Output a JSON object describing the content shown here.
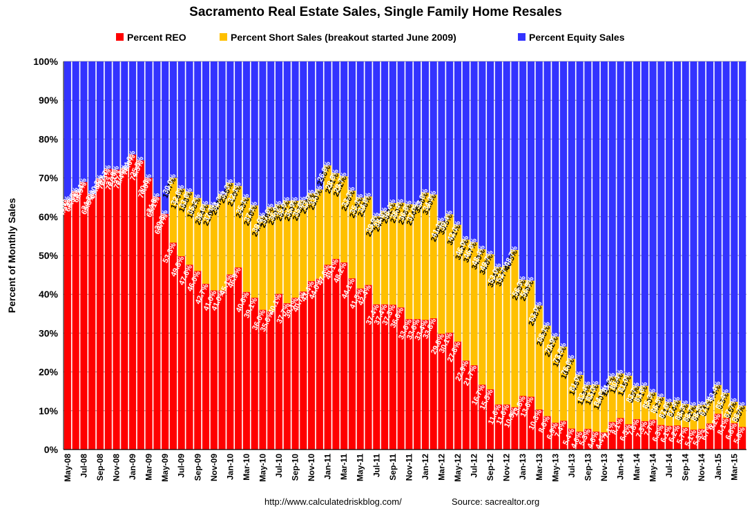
{
  "chart_data": {
    "type": "bar",
    "stacked": true,
    "title": "Sacramento Real Estate Sales, Single Family Home Resales",
    "ylabel": "Percent of Monthly Sales",
    "ylim": [
      0,
      100
    ],
    "yticks": [
      "0%",
      "10%",
      "20%",
      "30%",
      "40%",
      "50%",
      "60%",
      "70%",
      "80%",
      "90%",
      "100%"
    ],
    "grid": true,
    "legend_position": "top",
    "categories": [
      "May-08",
      "Jun-08",
      "Jul-08",
      "Aug-08",
      "Sep-08",
      "Oct-08",
      "Nov-08",
      "Dec-08",
      "Jan-09",
      "Feb-09",
      "Mar-09",
      "Apr-09",
      "May-09",
      "Jun-09",
      "Jul-09",
      "Aug-09",
      "Sep-09",
      "Oct-09",
      "Nov-09",
      "Dec-09",
      "Jan-10",
      "Feb-10",
      "Mar-10",
      "Apr-10",
      "May-10",
      "Jun-10",
      "Jul-10",
      "Aug-10",
      "Sep-10",
      "Oct-10",
      "Nov-10",
      "Dec-10",
      "Jan-11",
      "Feb-11",
      "Mar-11",
      "Apr-11",
      "May-11",
      "Jun-11",
      "Jul-11",
      "Aug-11",
      "Sep-11",
      "Oct-11",
      "Nov-11",
      "Dec-11",
      "Jan-12",
      "Feb-12",
      "Mar-12",
      "Apr-12",
      "May-12",
      "Jun-12",
      "Jul-12",
      "Aug-12",
      "Sep-12",
      "Oct-12",
      "Nov-12",
      "Dec-12",
      "Jan-13",
      "Feb-13",
      "Mar-13",
      "Apr-13",
      "May-13",
      "Jun-13",
      "Jul-13",
      "Aug-13",
      "Sep-13",
      "Oct-13",
      "Nov-13",
      "Dec-13",
      "Jan-14",
      "Feb-14",
      "Mar-14",
      "Apr-14",
      "May-14",
      "Jun-14",
      "Jul-14",
      "Aug-14",
      "Sep-14",
      "Oct-14",
      "Nov-14",
      "Dec-14",
      "Jan-15",
      "Feb-15",
      "Mar-15",
      "Apr-15"
    ],
    "xtick_labels": [
      "May-08",
      "Jul-08",
      "Sep-08",
      "Nov-08",
      "Jan-09",
      "Mar-09",
      "May-09",
      "Jul-09",
      "Sep-09",
      "Nov-09",
      "Jan-10",
      "Mar-10",
      "May-10",
      "Jul-10",
      "Sep-10",
      "Nov-10",
      "Jan-11",
      "Mar-11",
      "May-11",
      "Jul-11",
      "Sep-11",
      "Nov-11",
      "Jan-12",
      "Mar-12",
      "May-12",
      "Jul-12",
      "Sep-12",
      "Nov-12",
      "Jan-13",
      "Mar-13",
      "May-13",
      "Jul-13",
      "Sep-13",
      "Nov-13",
      "Jan-14",
      "Mar-14",
      "May-14",
      "Jul-14",
      "Sep-14",
      "Nov-14",
      "Jan-15",
      "Mar-15"
    ],
    "series": [
      {
        "name": "Percent REO",
        "color": "#ff0000",
        "values": [
          64.3,
          66.5,
          68.9,
          65.8,
          69.8,
          72.3,
          72.1,
          72.4,
          76.0,
          74.5,
          70.0,
          65.1,
          60.7,
          53.3,
          49.8,
          47.6,
          46.0,
          42.7,
          41.0,
          41.0,
          45.1,
          46.9,
          40.6,
          39.1,
          36.0,
          35.6,
          40.1,
          37.7,
          39.1,
          40.7,
          43.4,
          44.0,
          47.6,
          49.1,
          48.2,
          44.1,
          41.5,
          42.4,
          37.4,
          37.4,
          37.3,
          36.6,
          33.6,
          33.6,
          33.4,
          33.8,
          29.8,
          30.1,
          27.8,
          22.9,
          21.7,
          16.7,
          15.5,
          11.6,
          11.6,
          10.9,
          13.8,
          13.6,
          10.3,
          8.6,
          6.9,
          7.4,
          5.4,
          4.6,
          5.3,
          4.6,
          4.4,
          7.1,
          8.1,
          6.5,
          7.8,
          7.3,
          7.7,
          6.3,
          6.1,
          6.2,
          5.7,
          5.1,
          5.3,
          6.7,
          9.2,
          8.1,
          6.8,
          5.8
        ]
      },
      {
        "name": "Percent Short Sales (breakout started June 2009)",
        "color": "#ffc000",
        "values": [
          null,
          null,
          null,
          null,
          null,
          null,
          null,
          null,
          null,
          null,
          null,
          null,
          null,
          16.7,
          17.4,
          18.8,
          18.8,
          20.4,
          21.9,
          24.7,
          23.6,
          21.0,
          24.3,
          23.8,
          24.1,
          26.8,
          23.0,
          26.4,
          25.0,
          23.5,
          22.6,
          23.0,
          25.6,
          22.1,
          22.2,
          22.6,
          23.4,
          22.8,
          22.7,
          24.0,
          26.2,
          27.0,
          29.6,
          29.4,
          32.8,
          31.9,
          29.0,
          30.5,
          30.1,
          31.2,
          31.7,
          34.9,
          34.8,
          35.4,
          35.7,
          40.5,
          29.9,
          29.9,
          26.8,
          23.3,
          22.2,
          19.1,
          18.0,
          14.6,
          11.3,
          12.1,
          11.0,
          11.7,
          11.5,
          12.5,
          8.5,
          9.1,
          7.0,
          7.2,
          6.1,
          6.4,
          6.0,
          6.2,
          6.2,
          6.1,
          7.4,
          6.5,
          5.5,
          5.5
        ]
      },
      {
        "name": "Percent Equity Sales",
        "color": "#3333ff",
        "values": [
          35.7,
          33.5,
          31.1,
          34.2,
          30.2,
          27.7,
          27.9,
          27.6,
          24.0,
          25.5,
          30.0,
          34.9,
          39.3,
          30.0,
          32.8,
          33.6,
          35.2,
          36.8,
          37.1,
          34.3,
          31.3,
          32.1,
          35.1,
          37.1,
          39.9,
          37.6,
          36.9,
          35.9,
          35.9,
          35.8,
          33.9,
          33.0,
          26.8,
          28.8,
          29.7,
          33.3,
          35.1,
          34.8,
          39.9,
          38.6,
          36.4,
          36.4,
          36.8,
          37.0,
          33.8,
          34.3,
          41.1,
          39.4,
          42.1,
          46.0,
          46.6,
          48.4,
          49.7,
          53.0,
          52.7,
          48.7,
          56.3,
          56.5,
          63.0,
          68.1,
          70.9,
          73.5,
          76.6,
          81.0,
          83.4,
          83.3,
          84.6,
          81.2,
          80.4,
          81.0,
          83.7,
          83.6,
          85.3,
          86.5,
          87.8,
          87.4,
          88.3,
          88.7,
          88.5,
          87.2,
          83.4,
          85.4,
          87.7,
          88.7
        ]
      }
    ],
    "series_labels": [
      [
        "64.3%",
        "66.5%",
        "68.9%",
        "65.8%",
        "69.8%",
        "72.3%",
        "72.1%",
        "72.4%",
        "76.0%",
        "74.5%",
        "70.0%",
        "65.1%",
        "60.7%",
        "53.3%",
        "49.8%",
        "47.6%",
        "46.0%",
        "42.7%",
        "41.0%",
        "41.0%",
        "45.1%",
        "46.9%",
        "40.6%",
        "39.1%",
        "36.0%",
        "35.6%",
        "40.1%",
        "37.7%",
        "39.1%",
        "40.7%",
        "43.4%",
        "44.0%",
        "47.6%",
        "49.1%",
        "48.2%",
        "44.1%",
        "41.5%",
        "42.4%",
        "37.4%",
        "37.4%",
        "37.3%",
        "36.6%",
        "33.6%",
        "33.6%",
        "33.4%",
        "33.8%",
        "29.8%",
        "30.1%",
        "27.8%",
        "22.9%",
        "21.7%",
        "16.7%",
        "15.5%",
        "11.6%",
        "11.6%",
        "10.9%",
        "13.8%",
        "13.6%",
        "10.3%",
        "8.6%",
        "6.9%",
        "7.4%",
        "5.4%",
        "4.6%",
        "5.3%",
        "4.6%",
        "4.4%",
        "7.1%",
        "8.1%",
        "6.5%",
        "7.8%",
        "7.3%",
        "7.7%",
        "6.3%",
        "6.1%",
        "6.2%",
        "5.7%",
        "5.1%",
        "5.3%",
        "6.7%",
        "9.2%",
        "8.1%",
        "6.8%",
        "5.8%"
      ],
      [
        "",
        "",
        "",
        "",
        "",
        "",
        "",
        "",
        "",
        "",
        "",
        "",
        "",
        "16.7%",
        "17.4%",
        "18.8%",
        "18.8%",
        "20.4%",
        "21.9%",
        "24.7%",
        "23.6%",
        "21.0%",
        "24.3%",
        "23.8%",
        "24.1%",
        "26.8%",
        "23.0%",
        "26.4%",
        "25.0%",
        "23.5%",
        "22.6%",
        "23.0%",
        "25.6%",
        "22.1%",
        "22.2%",
        "22.6%",
        "23.4%",
        "22.8%",
        "22.7%",
        "24.0%",
        "26.2%",
        "27.0%",
        "29.6%",
        "29.4%",
        "32.8%",
        "31.9%",
        "29.0%",
        "30.5%",
        "30.1%",
        "31.2%",
        "31.7%",
        "34.9%",
        "34.8%",
        "35.4%",
        "35.7%",
        "40.5%",
        "29.9%",
        "29.9%",
        "26.8%",
        "23.3%",
        "22.2%",
        "19.1%",
        "18.0%",
        "14.6%",
        "11.3%",
        "12.1%",
        "11.0%",
        "11.7%",
        "11.5%",
        "12.5%",
        "8.5%",
        "9.1%",
        "7.0%",
        "7.2%",
        "6.1%",
        "6.4%",
        "6.0%",
        "6.2%",
        "6.2%",
        "6.1%",
        "7.4%",
        "6.5%",
        "5.5%",
        "5.5%"
      ],
      [
        "35.7%",
        "33.5%",
        "31.1%",
        "34.2%",
        "30.2%",
        "27.7%",
        "27.9%",
        "27.6%",
        "24.0%",
        "25.5%",
        "30.0%",
        "34.9%",
        "39.3%",
        "30.0%",
        "32.8%",
        "33.6%",
        "35.2%",
        "36.8%",
        "37.1%",
        "34.3%",
        "31.3%",
        "32.1%",
        "35.1%",
        "37.1%",
        "39.9%",
        "37.6%",
        "36.9%",
        "35.9%",
        "35.9%",
        "35.8%",
        "33.9%",
        "33.0%",
        "26.8%",
        "28.8%",
        "29.7%",
        "33.3%",
        "35.1%",
        "34.8%",
        "39.9%",
        "38.6%",
        "36.4%",
        "36.4%",
        "36.8%",
        "37.0%",
        "33.8%",
        "34.3%",
        "41.1%",
        "39.4%",
        "42.1%",
        "46.0%",
        "46.6%",
        "48.4%",
        "49.7%",
        "53.0%",
        "52.7%",
        "48.7%",
        "56.3%",
        "56.5%",
        "63.0%",
        "68.1%",
        "70.9%",
        "73.5%",
        "76.6%",
        "81.0%",
        "83.4%",
        "83.3%",
        "84.6%",
        "81.2%",
        "80.4%",
        "81.0%",
        "83.7%",
        "83.6%",
        "85.3%",
        "86.5%",
        "87.8%",
        "87.4%",
        "88.3%",
        "88.7%",
        "88.5%",
        "87.2%",
        "83.4%",
        "85.4%",
        "87.7%",
        "88.7%"
      ]
    ]
  },
  "footer": {
    "url": "http://www.calculatedriskblog.com/",
    "source": "Source: sacrealtor.org"
  }
}
